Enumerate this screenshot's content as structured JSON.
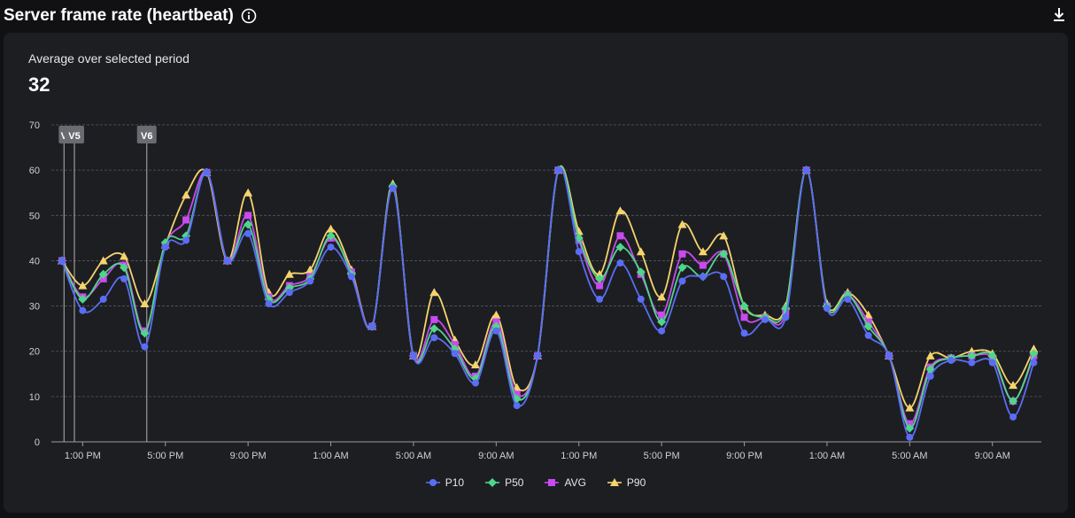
{
  "header": {
    "title": "Server frame rate (heartbeat)"
  },
  "summary": {
    "label": "Average over selected period",
    "value": "32"
  },
  "colors": {
    "P10": "#5b6df5",
    "P50": "#4ed68a",
    "AVG": "#c94af0",
    "P90": "#f5d46e",
    "grid": "#555860",
    "axis": "#9a9ba0",
    "marker": "#9a9a9a"
  },
  "chart_data": {
    "type": "line",
    "ylim": [
      0,
      70
    ],
    "yticks": [
      0,
      10,
      20,
      30,
      40,
      50,
      60,
      70
    ],
    "grid": true,
    "legend_position": "bottom",
    "x_ticks": [
      {
        "label": "1:00 PM",
        "at": 1
      },
      {
        "label": "5:00 PM",
        "at": 5
      },
      {
        "label": "9:00 PM",
        "at": 9
      },
      {
        "label": "1:00 AM",
        "at": 13
      },
      {
        "label": "5:00 AM",
        "at": 17
      },
      {
        "label": "9:00 AM",
        "at": 21
      },
      {
        "label": "1:00 PM",
        "at": 25
      },
      {
        "label": "5:00 PM",
        "at": 29
      },
      {
        "label": "9:00 PM",
        "at": 33
      },
      {
        "label": "1:00 AM",
        "at": 37
      },
      {
        "label": "5:00 AM",
        "at": 41
      },
      {
        "label": "9:00 AM",
        "at": 45
      }
    ],
    "markers": [
      {
        "label": "V",
        "x": 0.1
      },
      {
        "label": "V5",
        "x": 0.6
      },
      {
        "label": "V6",
        "x": 4.1
      }
    ],
    "series": [
      {
        "name": "P10",
        "values": [
          40,
          29,
          31.5,
          36,
          21,
          43,
          44.5,
          59.5,
          40,
          46,
          30.5,
          33,
          35.5,
          43,
          36.5,
          25.5,
          56,
          19,
          23,
          19.5,
          13,
          24.5,
          8,
          19,
          60,
          42,
          31.5,
          39.5,
          31.5,
          24.5,
          35.5,
          36.5,
          36.5,
          24,
          27,
          27.5,
          60,
          29.5,
          31.5,
          23.5,
          19,
          1,
          14.5,
          18,
          17.5,
          17.5,
          5.5,
          17.5
        ]
      },
      {
        "name": "P50",
        "values": [
          40,
          31.5,
          37,
          38.5,
          24,
          44,
          45.5,
          59.5,
          40,
          48,
          31.5,
          34,
          36,
          45.5,
          37,
          25.5,
          56.5,
          19,
          25,
          20.5,
          14,
          25.5,
          9.5,
          19,
          60,
          45,
          36,
          43,
          37.5,
          26.5,
          38.5,
          36.5,
          41.5,
          30,
          27.5,
          29.5,
          60,
          30,
          32.5,
          25.5,
          19,
          3,
          16,
          18.5,
          19,
          19,
          9,
          19.5
        ]
      },
      {
        "name": "AVG",
        "values": [
          40,
          32,
          36,
          39,
          24.5,
          43.5,
          49,
          59.5,
          40,
          50,
          32,
          34.5,
          36.5,
          45,
          37.5,
          25.5,
          56,
          19,
          27,
          21.5,
          14.5,
          26.5,
          10.5,
          19,
          60,
          44.5,
          34.5,
          45.5,
          37,
          28,
          41.5,
          39,
          41.5,
          27.5,
          27.5,
          28.5,
          60,
          30,
          32.5,
          26.5,
          19,
          4,
          16.5,
          18.5,
          19,
          18.5,
          9,
          19
        ]
      },
      {
        "name": "P90",
        "values": [
          40,
          34.5,
          40,
          41,
          30.5,
          43.5,
          54.5,
          59.5,
          40,
          55,
          33,
          37,
          38,
          47,
          38,
          25.5,
          57,
          19,
          33,
          22.5,
          17,
          28,
          12,
          19,
          60,
          46.5,
          37,
          51,
          42,
          32,
          48,
          42,
          45.5,
          30,
          28,
          30,
          60,
          30.5,
          33,
          28,
          19,
          7.5,
          19,
          18.5,
          20,
          19.5,
          12.5,
          20.5
        ]
      }
    ]
  }
}
